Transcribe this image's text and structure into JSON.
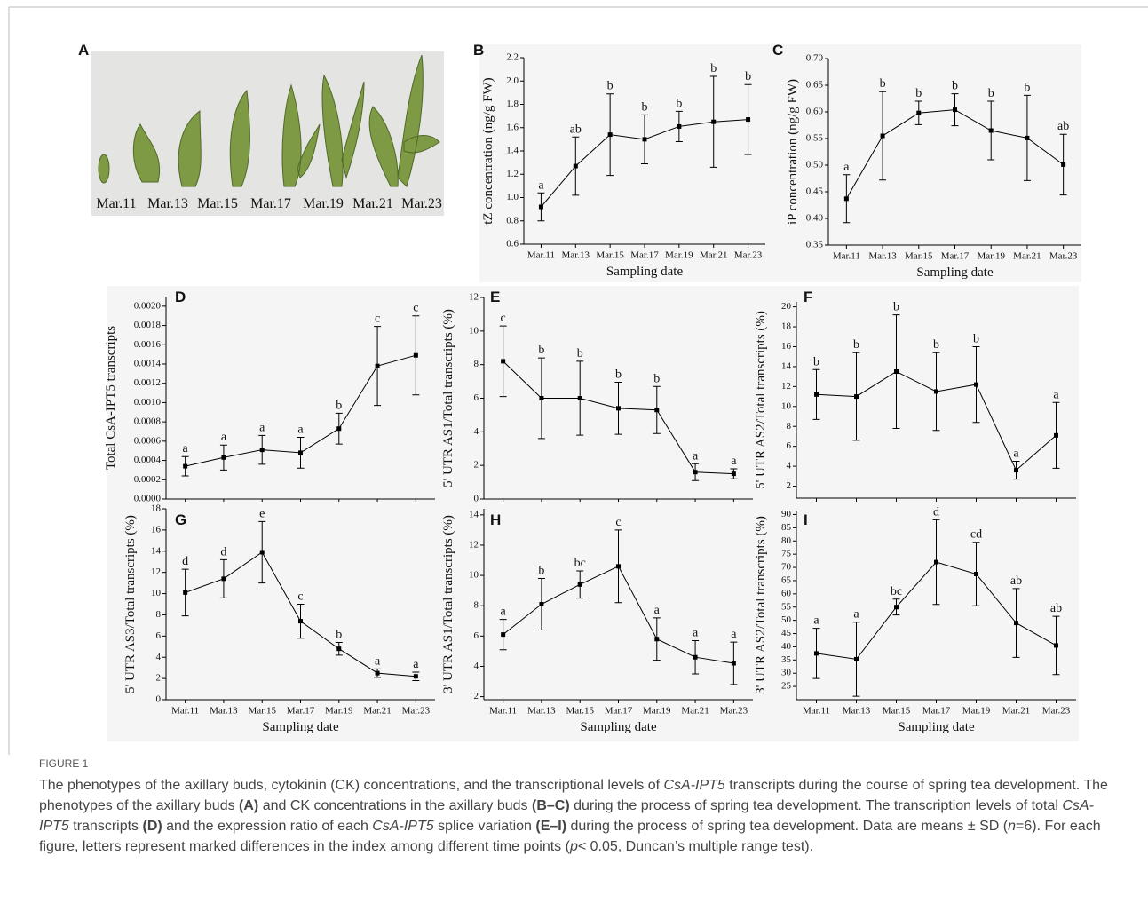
{
  "panel_a": {
    "label": "A",
    "dates": [
      "Mar.11",
      "Mar.13",
      "Mar.15",
      "Mar.17",
      "Mar.19",
      "Mar.21",
      "Mar.23"
    ]
  },
  "chart_data": [
    {
      "type": "line",
      "panel": "B",
      "ylabel": "tZ concentration (ng/g FW)",
      "xlabel": "Sampling date",
      "categories": [
        "Mar.11",
        "Mar.13",
        "Mar.15",
        "Mar.17",
        "Mar.19",
        "Mar.21",
        "Mar.23"
      ],
      "values": [
        0.92,
        1.27,
        1.54,
        1.5,
        1.61,
        1.65,
        1.67
      ],
      "errors": [
        0.12,
        0.25,
        0.35,
        0.21,
        0.13,
        0.39,
        0.3
      ],
      "letters": [
        "a",
        "ab",
        "b",
        "b",
        "b",
        "b",
        "b"
      ],
      "ylim": [
        0.6,
        2.2
      ],
      "yticks": [
        0.6,
        0.8,
        {
          "value": 1,
          "label": "1.0"
        },
        1.2,
        1.4,
        1.6,
        1.8,
        {
          "value": 2,
          "label": "2.0"
        },
        2.2
      ]
    },
    {
      "type": "line",
      "panel": "C",
      "ylabel": "iP concentration (ng/g FW)",
      "xlabel": "Sampling date",
      "categories": [
        "Mar.11",
        "Mar.13",
        "Mar.15",
        "Mar.17",
        "Mar.19",
        "Mar.21",
        "Mar.23"
      ],
      "values": [
        0.437,
        0.555,
        0.598,
        0.604,
        0.565,
        0.551,
        0.501
      ],
      "errors": [
        0.045,
        0.083,
        0.022,
        0.03,
        0.055,
        0.08,
        0.057
      ],
      "letters": [
        "a",
        "b",
        "b",
        "b",
        "b",
        "b",
        "ab"
      ],
      "ylim": [
        0.35,
        0.7
      ],
      "yticks": [
        0.35,
        {
          "value": 0.4,
          "label": "0.40"
        },
        0.45,
        {
          "value": 0.5,
          "label": "0.50"
        },
        0.55,
        {
          "value": 0.6,
          "label": "0.60"
        },
        0.65,
        {
          "value": 0.7,
          "label": "0.70"
        }
      ]
    },
    {
      "type": "line",
      "panel": "D",
      "ylabel": "Total CsA-IPT5 transcripts",
      "values": [
        0.00034,
        0.00043,
        0.00051,
        0.00048,
        0.00073,
        0.00138,
        0.00149
      ],
      "errors": [
        0.0001,
        0.00013,
        0.00015,
        0.00016,
        0.00016,
        0.00041,
        0.00041
      ],
      "letters": [
        "a",
        "a",
        "a",
        "a",
        "b",
        "c",
        "c"
      ],
      "ylim": [
        0,
        0.0021
      ],
      "yticks": [
        {
          "value": 0,
          "label": "0.0000"
        },
        0.0002,
        0.0004,
        0.0006,
        0.0008,
        {
          "value": 0.001,
          "label": "0.0010"
        },
        0.0012,
        0.0014,
        0.0016,
        0.0018,
        {
          "value": 0.002,
          "label": "0.0020"
        }
      ]
    },
    {
      "type": "line",
      "panel": "E",
      "ylabel": "5' UTR AS1/Total transcripts (%)",
      "values": [
        8.2,
        6.0,
        6.0,
        5.4,
        5.3,
        1.6,
        1.5
      ],
      "errors": [
        2.1,
        2.4,
        2.2,
        1.55,
        1.4,
        0.5,
        0.3
      ],
      "letters": [
        "c",
        "b",
        "b",
        "b",
        "b",
        "a",
        "a"
      ],
      "ylim": [
        0,
        12
      ],
      "yticks": [
        0,
        2,
        4,
        6,
        8,
        10,
        12
      ]
    },
    {
      "type": "line",
      "panel": "F",
      "ylabel": "5' UTR AS2/Total transcripts (%)",
      "values": [
        11.2,
        11.0,
        13.5,
        11.5,
        12.2,
        3.6,
        7.1
      ],
      "errors": [
        2.5,
        4.4,
        5.7,
        3.9,
        3.8,
        0.9,
        3.3
      ],
      "letters": [
        "b",
        "b",
        "b",
        "b",
        "b",
        "a",
        "a"
      ],
      "ylim": [
        0.8,
        20.5
      ],
      "yticks": [
        2,
        4,
        6,
        8,
        10,
        12,
        14,
        16,
        18,
        20
      ]
    },
    {
      "type": "line",
      "panel": "G",
      "ylabel": "5' UTR AS3/Total transcripts (%)",
      "xlabel": "Sampling date",
      "categories": [
        "Mar.11",
        "Mar.13",
        "Mar.15",
        "Mar.17",
        "Mar.19",
        "Mar.21",
        "Mar.23"
      ],
      "values": [
        10.1,
        11.4,
        13.9,
        7.4,
        4.8,
        2.5,
        2.2
      ],
      "errors": [
        2.2,
        1.8,
        2.9,
        1.6,
        0.6,
        0.4,
        0.4
      ],
      "letters": [
        "d",
        "d",
        "e",
        "c",
        "b",
        "a",
        "a"
      ],
      "ylim": [
        0,
        18
      ],
      "yticks": [
        0,
        2,
        4,
        6,
        8,
        10,
        12,
        14,
        16,
        18
      ]
    },
    {
      "type": "line",
      "panel": "H",
      "ylabel": "3' UTR AS1/Total transcripts (%)",
      "xlabel": "Sampling date",
      "categories": [
        "Mar.11",
        "Mar.13",
        "Mar.15",
        "Mar.17",
        "Mar.19",
        "Mar.21",
        "Mar.23"
      ],
      "values": [
        6.1,
        8.1,
        9.4,
        10.6,
        5.8,
        4.6,
        4.2
      ],
      "errors": [
        1.0,
        1.7,
        0.9,
        2.4,
        1.4,
        1.1,
        1.4
      ],
      "letters": [
        "a",
        "b",
        "bc",
        "c",
        "a",
        "a",
        "a"
      ],
      "ylim": [
        1.8,
        14.4
      ],
      "yticks": [
        2,
        4,
        6,
        8,
        10,
        12,
        14
      ]
    },
    {
      "type": "line",
      "panel": "I",
      "ylabel": "3' UTR AS2/Total transcripts (%)",
      "xlabel": "Sampling date",
      "categories": [
        "Mar.11",
        "Mar.13",
        "Mar.15",
        "Mar.17",
        "Mar.19",
        "Mar.21",
        "Mar.23"
      ],
      "values": [
        37.5,
        35.3,
        55,
        72,
        67.5,
        49,
        40.5
      ],
      "errors": [
        9.5,
        14,
        3,
        16,
        12,
        13,
        11
      ],
      "letters": [
        "a",
        "a",
        "bc",
        "d",
        "cd",
        "ab",
        "ab"
      ],
      "ylim": [
        20,
        91.5
      ],
      "yticks": [
        25,
        30,
        35,
        40,
        45,
        50,
        55,
        60,
        65,
        70,
        75,
        80,
        85,
        90
      ]
    }
  ],
  "caption": {
    "label": "FIGURE 1",
    "text": [
      "The phenotypes of the axillary buds, cytokinin (CK) concentrations, and the transcriptional levels of ",
      "CsA-IPT5",
      " transcripts during the course of spring tea development. The phenotypes of the axillary buds ",
      "(A)",
      " and CK concentrations in the axillary buds ",
      "(B–C)",
      " during the process of spring tea development. The transcription levels of total ",
      "CsA-IPT5",
      " transcripts ",
      "(D)",
      " and the expression ratio of each ",
      "CsA-IPT5",
      " splice variation ",
      "(E–I)",
      " during the process of spring tea development. Data are means ± SD (",
      "n",
      "=6). For each figure, letters represent marked differences in the index among different time points (",
      "p",
      "< 0.05, Duncan’s multiple range test)."
    ]
  }
}
